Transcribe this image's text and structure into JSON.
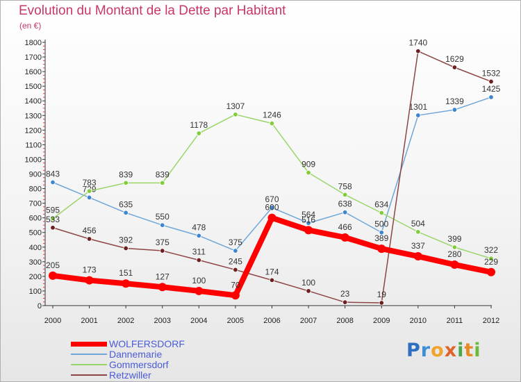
{
  "chart_data": {
    "type": "line",
    "title": "Evolution du Montant de la Dette par Habitant",
    "subtitle": "(en €)",
    "categories": [
      "2000",
      "2001",
      "2002",
      "2003",
      "2004",
      "2005",
      "2006",
      "2007",
      "2008",
      "2009",
      "2010",
      "2011",
      "2012"
    ],
    "ylim": [
      0,
      1800
    ],
    "yticks": [
      0,
      100,
      200,
      300,
      400,
      500,
      600,
      700,
      800,
      900,
      1000,
      1100,
      1200,
      1300,
      1400,
      1500,
      1600,
      1700,
      1800
    ],
    "grid": false,
    "legend_position": "bottom-left",
    "series": [
      {
        "name": "WOLFERSDORF",
        "color": "#ff0000",
        "marker": "#ff0000",
        "emphasis": true,
        "values": [
          205,
          173,
          151,
          127,
          100,
          70,
          600,
          516,
          466,
          389,
          337,
          280,
          229
        ]
      },
      {
        "name": "Dannemarie",
        "color": "#6fa5d8",
        "marker": "#3f86d0",
        "emphasis": false,
        "values": [
          843,
          739,
          635,
          550,
          478,
          375,
          670,
          564,
          638,
          500,
          1301,
          1339,
          1425
        ]
      },
      {
        "name": "Gommersdorf",
        "color": "#99d66a",
        "marker": "#82cc3c",
        "emphasis": false,
        "values": [
          595,
          783,
          839,
          839,
          1178,
          1307,
          1246,
          909,
          758,
          634,
          504,
          399,
          322
        ]
      },
      {
        "name": "Retzwiller",
        "color": "#8c4444",
        "marker": "#6e1f1f",
        "emphasis": false,
        "values": [
          533,
          456,
          392,
          375,
          311,
          245,
          174,
          100,
          23,
          19,
          1740,
          1629,
          1532
        ]
      }
    ]
  },
  "logo": {
    "text": "Proxiti",
    "letters": [
      {
        "ch": "P",
        "color": "#2f6fc2"
      },
      {
        "ch": "r",
        "color": "#3c8fd6"
      },
      {
        "ch": "o",
        "color": "#f0a42c"
      },
      {
        "ch": "x",
        "color": "#e0642a"
      },
      {
        "ch": "i",
        "color": "#4aa64a"
      },
      {
        "ch": "t",
        "color": "#e68a26"
      },
      {
        "ch": "i",
        "color": "#6cba3c"
      }
    ]
  }
}
